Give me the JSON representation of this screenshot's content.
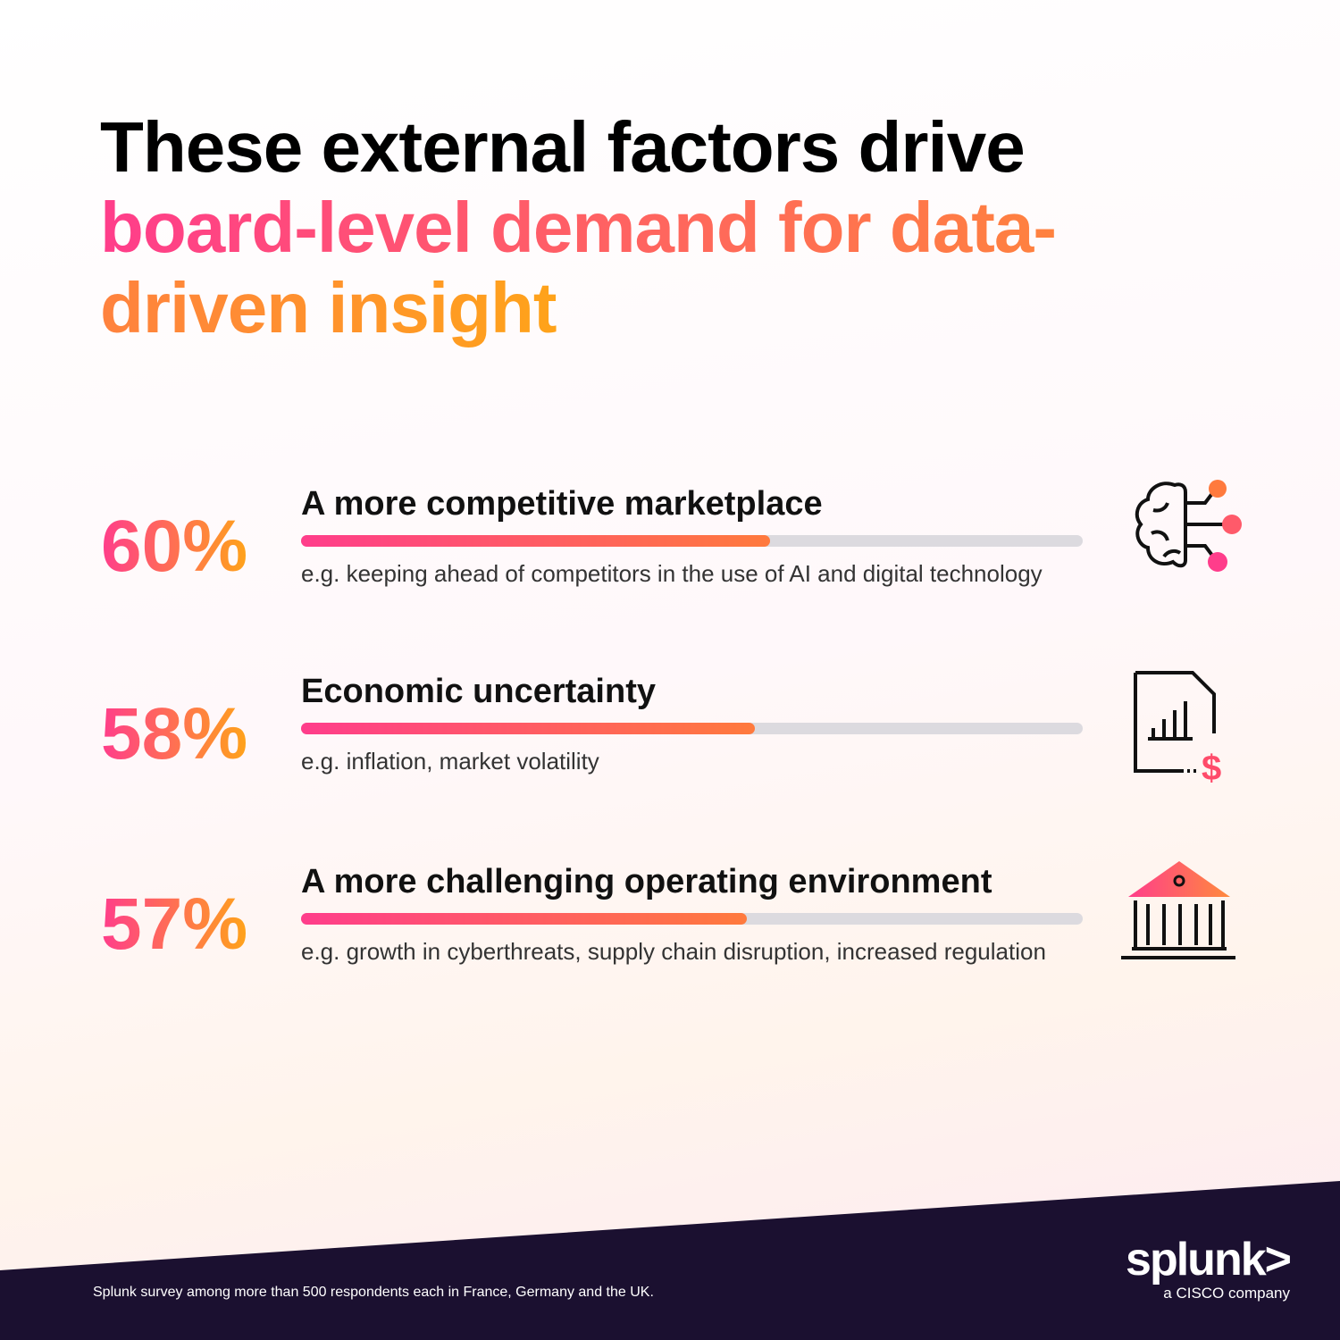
{
  "chart_data": {
    "type": "bar",
    "title": {
      "plain": "These external factors drive",
      "highlight": "board-level demand for data-driven insight"
    },
    "categories": [
      "A more competitive marketplace",
      "Economic uncertainty",
      "A more challenging operating environment"
    ],
    "descriptions": [
      "e.g. keeping ahead of competitors in the use of AI and digital technology",
      "e.g. inflation, market volatility",
      "e.g. growth in cyberthreats, supply chain disruption, increased regulation"
    ],
    "values": [
      60,
      58,
      57
    ],
    "value_labels": [
      "60%",
      "58%",
      "57%"
    ],
    "xlim": [
      0,
      100
    ],
    "colors": {
      "bar_start": "#ff3d8b",
      "bar_end": "#ff7a3d",
      "track": "#dcdadf"
    },
    "footnote": "Splunk survey among more than 500 respondents each in France, Germany and the UK.",
    "logo": {
      "name": "splunk>",
      "tagline": "a CISCO company"
    }
  }
}
